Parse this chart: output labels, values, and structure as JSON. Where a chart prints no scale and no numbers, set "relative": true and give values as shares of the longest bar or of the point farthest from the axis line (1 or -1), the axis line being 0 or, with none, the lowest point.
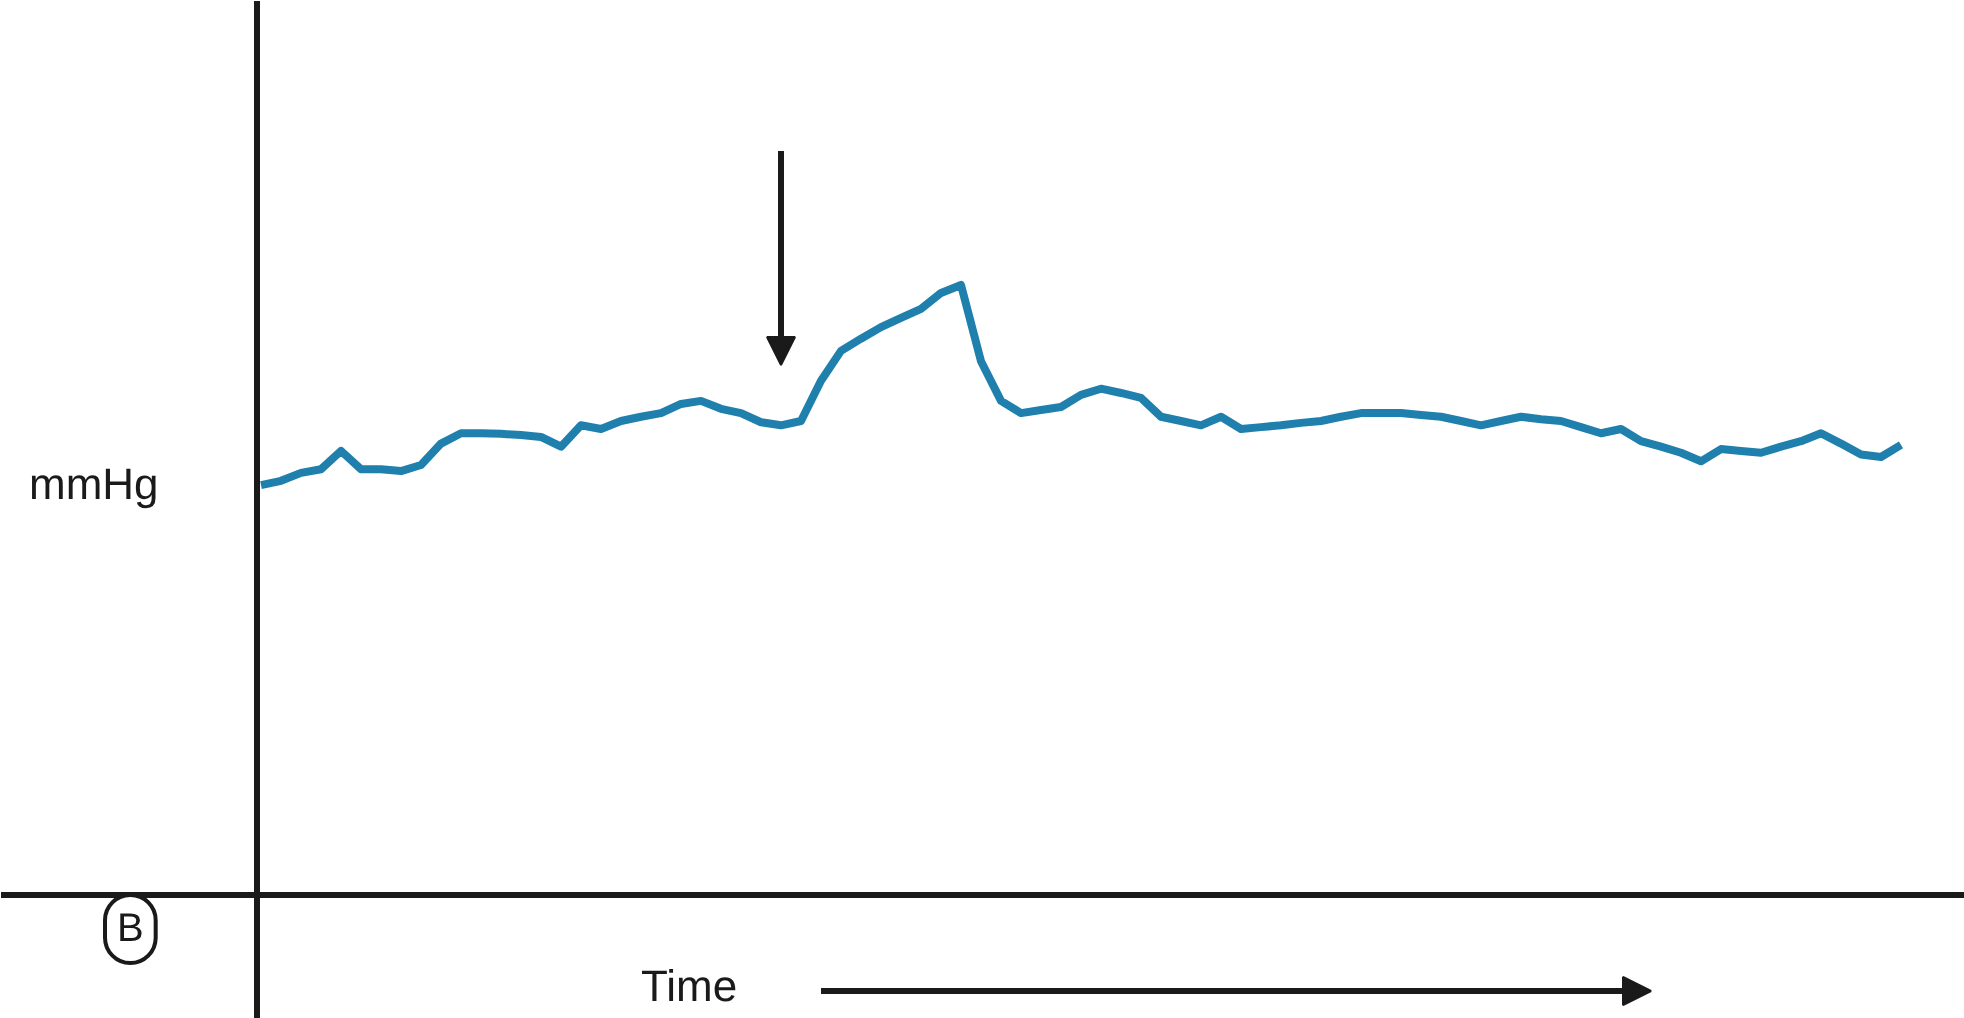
{
  "chart_data": {
    "type": "line",
    "relative": true,
    "ylabel": "mmHg",
    "xlabel": "Time",
    "annotations": [
      "B"
    ],
    "categories": [
      null,
      null,
      null,
      null,
      null,
      null,
      null,
      null,
      null,
      null,
      null,
      null,
      null,
      null,
      null,
      null,
      null,
      null,
      null,
      null,
      null,
      null,
      null,
      null,
      null,
      null,
      null,
      null,
      null,
      null,
      null,
      null,
      null,
      null,
      null,
      null,
      null,
      null,
      null,
      null,
      null,
      null,
      null,
      null,
      null,
      null,
      null,
      null,
      null,
      null,
      null,
      null,
      null,
      null,
      null,
      null,
      null,
      null,
      null,
      null,
      null,
      null,
      null,
      null,
      null,
      null,
      null,
      null,
      null,
      null,
      null,
      null,
      null,
      null,
      null,
      null,
      null,
      null,
      null,
      null,
      null,
      null,
      null
    ],
    "series": [
      {
        "color": "#1f7fad",
        "values": [
          0.672,
          0.679,
          0.692,
          0.698,
          0.728,
          0.698,
          0.698,
          0.695,
          0.705,
          0.74,
          0.757,
          0.757,
          0.756,
          0.754,
          0.751,
          0.735,
          0.77,
          0.764,
          0.777,
          0.784,
          0.79,
          0.805,
          0.81,
          0.797,
          0.79,
          0.775,
          0.77,
          0.777,
          0.843,
          0.892,
          0.912,
          0.931,
          0.946,
          0.961,
          0.987,
          1,
          0.875,
          0.81,
          0.79,
          0.795,
          0.8,
          0.82,
          0.83,
          0.823,
          0.815,
          0.784,
          0.777,
          0.77,
          0.784,
          0.764,
          0.767,
          0.77,
          0.774,
          0.777,
          0.784,
          0.79,
          0.79,
          0.79,
          0.787,
          0.784,
          0.777,
          0.77,
          0.777,
          0.784,
          0.78,
          0.777,
          0.767,
          0.757,
          0.764,
          0.744,
          0.735,
          0.725,
          0.711,
          0.731,
          0.728,
          0.725,
          0.735,
          0.744,
          0.757,
          0.74,
          0.722,
          0.718,
          0.738
        ]
      }
    ],
    "marker": "none",
    "line_style": "solid"
  }
}
